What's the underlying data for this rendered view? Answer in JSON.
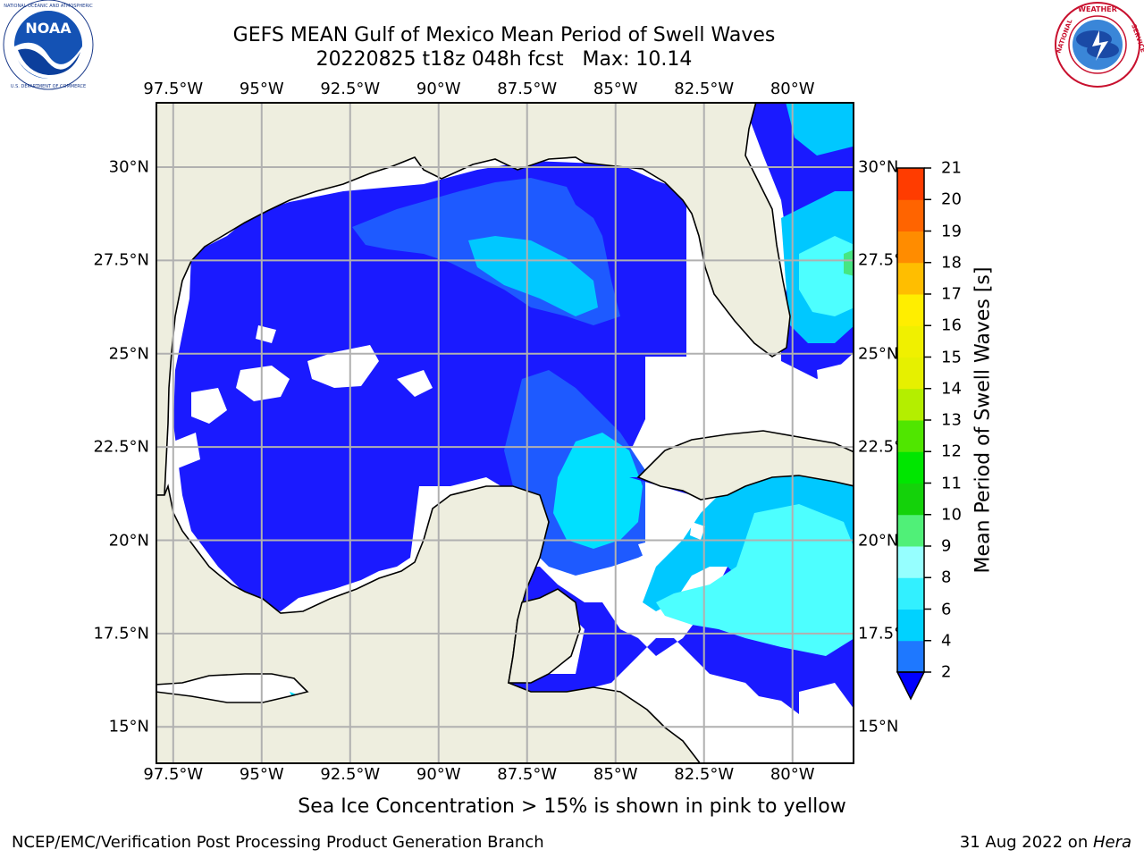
{
  "header": {
    "title_line1": "GEFS MEAN Gulf of Mexico Mean Period of Swell Waves",
    "title_line2": "20220825 t18z 048h fcst   Max: 10.14"
  },
  "logos": {
    "left": "NOAA",
    "left_ring_text": "NATIONAL OCEANIC AND ATMOSPHERIC ADMINISTRATION · U.S. DEPARTMENT OF COMMERCE",
    "right_ring_text": "NATIONAL WEATHER SERVICE"
  },
  "map": {
    "lon_labels": [
      "97.5°W",
      "95°W",
      "92.5°W",
      "90°W",
      "87.5°W",
      "85°W",
      "82.5°W",
      "80°W"
    ],
    "lat_labels": [
      "30°N",
      "27.5°N",
      "25°N",
      "22.5°N",
      "20°N",
      "17.5°N",
      "15°N"
    ],
    "lon_range": [
      -98,
      -78.25
    ],
    "lat_range": [
      14,
      31.75
    ],
    "land_color": "#eeeedf",
    "ocean_colors": {
      "2-4": "#1e5aff",
      "4-6": "#00c8ff",
      "6-8": "#4dffff",
      "below-2": "#1a1aff",
      "no-data": "#ffffff",
      "8-10": "#46e682"
    }
  },
  "colorbar": {
    "label": "Mean Period of Swell Waves [s]",
    "ticks": [
      "2",
      "4",
      "6",
      "8",
      "9",
      "10",
      "11",
      "12",
      "13",
      "14",
      "15",
      "16",
      "17",
      "18",
      "19",
      "20",
      "21"
    ],
    "colors": [
      "#1e78ff",
      "#00d2ff",
      "#32f0ff",
      "#96ffff",
      "#50f078",
      "#14d20a",
      "#00e600",
      "#50e600",
      "#b4ee00",
      "#e6f000",
      "#f0f000",
      "#ffee00",
      "#ffbe00",
      "#ff8c00",
      "#ff6400",
      "#ff3c00",
      "#ff0000"
    ],
    "under_color": "#0000ff"
  },
  "footer": {
    "note": "Sea Ice Concentration > 15% is shown in pink to yellow",
    "credit_left": "NCEP/EMC/Verification Post Processing Product Generation Branch",
    "date": "31 Aug 2022 on ",
    "host": "Hera"
  }
}
